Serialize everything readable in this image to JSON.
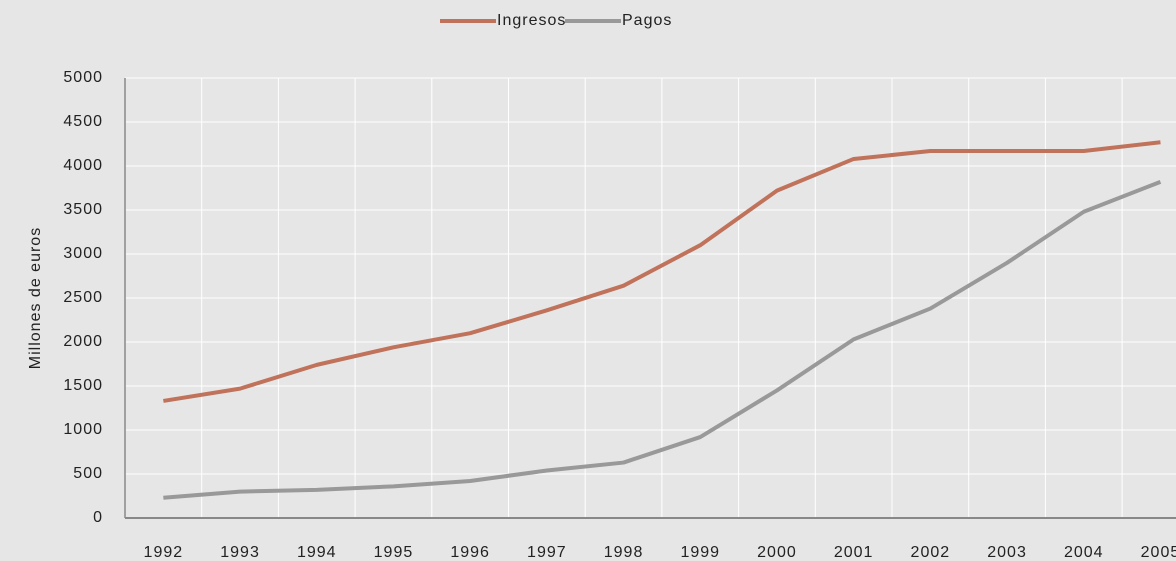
{
  "chart_data": {
    "type": "line",
    "y_label": "Millones de euros",
    "categories": [
      "1992",
      "1993",
      "1994",
      "1995",
      "1996",
      "1997",
      "1998",
      "1999",
      "2000",
      "2001",
      "2002",
      "2003",
      "2004",
      "2005"
    ],
    "series": [
      {
        "name": "Ingresos",
        "color": "#c0735a",
        "values": [
          1330,
          1470,
          1740,
          1940,
          2100,
          2360,
          2640,
          3100,
          3720,
          4080,
          4170,
          4170,
          4170,
          4270
        ]
      },
      {
        "name": "Pagos",
        "color": "#999999",
        "values": [
          230,
          300,
          320,
          360,
          420,
          540,
          630,
          920,
          1450,
          2030,
          2380,
          2900,
          3480,
          3820
        ]
      }
    ],
    "ylim": [
      0,
      5000
    ],
    "yticks": [
      0,
      500,
      1000,
      1500,
      2000,
      2500,
      3000,
      3500,
      4000,
      4500,
      5000
    ],
    "grid": true,
    "legend": "top"
  }
}
